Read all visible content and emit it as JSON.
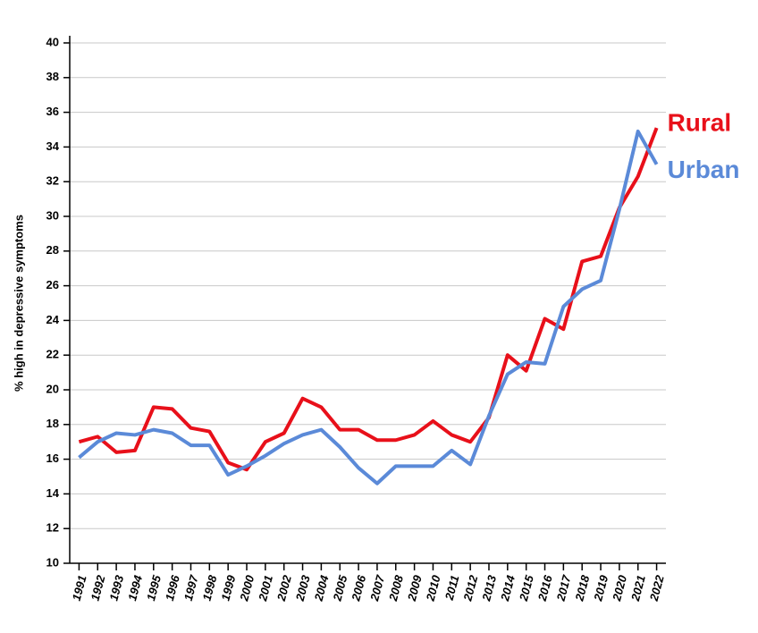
{
  "chart_data": {
    "type": "line",
    "y_label": "% high in depressive symptoms",
    "categories": [
      "1991",
      "1992",
      "1993",
      "1994",
      "1995",
      "1996",
      "1997",
      "1998",
      "1999",
      "2000",
      "2001",
      "2002",
      "2003",
      "2004",
      "2005",
      "2006",
      "2007",
      "2008",
      "2009",
      "2010",
      "2011",
      "2012",
      "2013",
      "2014",
      "2015",
      "2016",
      "2017",
      "2018",
      "2019",
      "2020",
      "2021",
      "2022"
    ],
    "series": [
      {
        "name": "Rural",
        "color": "#e8101a",
        "values": [
          17.0,
          17.3,
          16.4,
          16.5,
          19.0,
          18.9,
          17.8,
          17.6,
          15.8,
          15.4,
          17.0,
          17.5,
          19.5,
          19.0,
          17.7,
          17.7,
          17.1,
          17.1,
          17.4,
          18.2,
          17.4,
          17.0,
          18.4,
          22.0,
          21.1,
          24.1,
          23.5,
          27.4,
          27.7,
          30.5,
          32.3,
          35.1
        ]
      },
      {
        "name": "Urban",
        "color": "#5b8ad8",
        "values": [
          16.1,
          17.0,
          17.5,
          17.4,
          17.7,
          17.5,
          16.8,
          16.8,
          15.1,
          15.6,
          16.2,
          16.9,
          17.4,
          17.7,
          16.7,
          15.5,
          14.6,
          15.6,
          15.6,
          15.6,
          16.5,
          15.7,
          18.5,
          20.9,
          21.6,
          21.5,
          24.8,
          25.8,
          26.3,
          30.4,
          34.9,
          33.0
        ]
      }
    ],
    "ylim": [
      10,
      40
    ],
    "yticks": [
      10,
      12,
      14,
      16,
      18,
      20,
      22,
      24,
      26,
      28,
      30,
      32,
      34,
      36,
      38,
      40
    ],
    "grid": true
  }
}
